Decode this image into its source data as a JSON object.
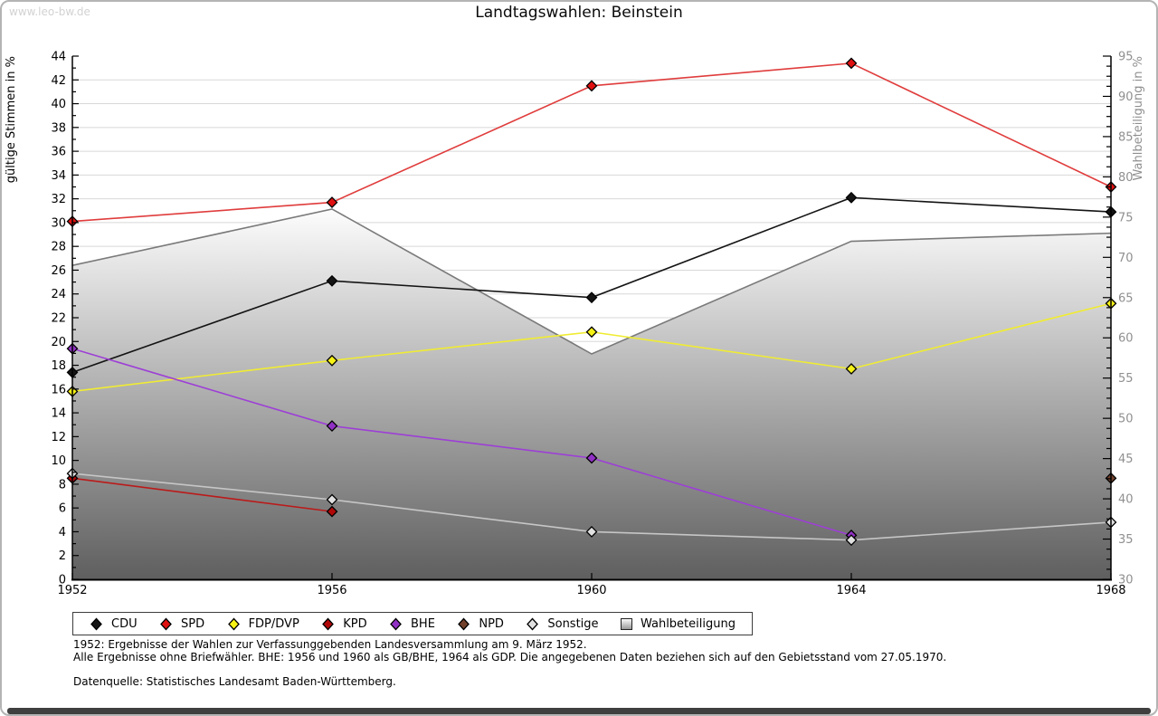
{
  "page": {
    "watermark": "www.leo-bw.de",
    "title": "Landtagswahlen: Beinstein",
    "footnotes": {
      "line1": "1952: Ergebnisse der Wahlen zur Verfassunggebenden Landesversammlung am 9. März 1952.",
      "line2": "Alle Ergebnisse ohne Briefwähler. BHE: 1956 und 1960 als GB/BHE, 1964 als GDP. Die angegebenen Daten beziehen sich auf den Gebietsstand vom 27.05.1970.",
      "source": "Datenquelle: Statistisches Landesamt Baden-Württemberg."
    }
  },
  "chart_data": {
    "type": "line",
    "title": "Landtagswahlen: Beinstein",
    "x": [
      1952,
      1956,
      1960,
      1964,
      1968
    ],
    "left_axis": {
      "label": "gültige Stimmen in %",
      "min": 0,
      "max": 44,
      "major_tick": 2,
      "minor_tick": 1,
      "label_color": "#000000"
    },
    "right_axis": {
      "label": "Wahlbeteiligung in %",
      "min": 30,
      "max": 95,
      "major_tick": 5,
      "minor_tick": 1.25,
      "label_color": "#8f8f8f"
    },
    "grid": {
      "horizontal": true,
      "step": 2,
      "color": "#d8d8d8"
    },
    "series": [
      {
        "name": "CDU",
        "axis": "left",
        "type": "line",
        "line_color": "#141414",
        "marker_color": "#141414",
        "values": [
          17.4,
          25.1,
          23.7,
          32.1,
          30.9
        ]
      },
      {
        "name": "SPD",
        "axis": "left",
        "type": "line",
        "line_color": "#e03c3c",
        "marker_color": "#e01010",
        "values": [
          30.1,
          31.7,
          41.5,
          43.4,
          33.0
        ]
      },
      {
        "name": "FDP/DVP",
        "axis": "left",
        "type": "line",
        "line_color": "#f0ec32",
        "marker_color": "#f6f216",
        "values": [
          15.8,
          18.4,
          20.8,
          17.7,
          23.2
        ]
      },
      {
        "name": "KPD",
        "axis": "left",
        "type": "line",
        "line_color": "#bb1a1a",
        "marker_color": "#b00808",
        "values": [
          8.5,
          5.7,
          null,
          null,
          null
        ]
      },
      {
        "name": "BHE",
        "axis": "left",
        "type": "line",
        "line_color": "#9d3fd6",
        "marker_color": "#9130c4",
        "values": [
          19.4,
          12.9,
          10.2,
          3.7,
          null
        ]
      },
      {
        "name": "NPD",
        "axis": "left",
        "type": "line",
        "line_color": "#72412c",
        "marker_color": "#72412c",
        "values": [
          null,
          null,
          null,
          null,
          8.5
        ]
      },
      {
        "name": "Sonstige",
        "axis": "left",
        "type": "line",
        "line_color": "#c6c6c6",
        "marker_color": "#e0e0e0",
        "values": [
          8.9,
          6.7,
          4.0,
          3.3,
          4.8
        ]
      },
      {
        "name": "Wahlbeteiligung",
        "axis": "right",
        "type": "area",
        "edge_color": "#7a7a7a",
        "fill_top": "#ffffff",
        "fill_bottom": "#5e5e5e",
        "values": [
          69,
          76,
          58,
          72,
          73
        ]
      }
    ]
  }
}
